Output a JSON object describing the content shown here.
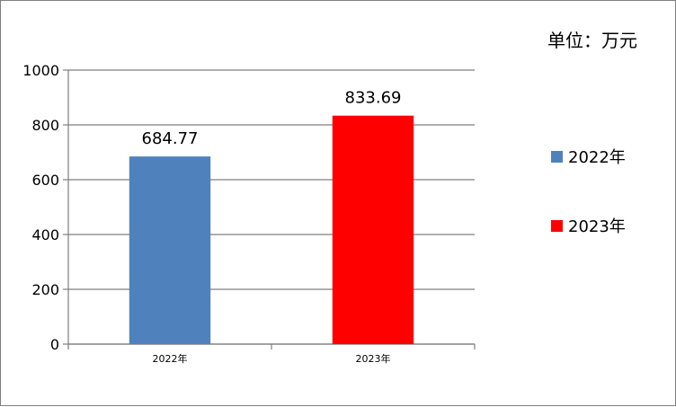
{
  "chart_data": {
    "type": "bar",
    "unit_label": "单位：万元",
    "categories": [
      "2022年",
      "2023年"
    ],
    "values": [
      684.77,
      833.69
    ],
    "data_labels": [
      "684.77",
      "833.69"
    ],
    "colors": [
      "#4f81bd",
      "#ff0000"
    ],
    "legend": [
      {
        "name": "2022年",
        "color": "#4f81bd"
      },
      {
        "name": "2023年",
        "color": "#ff0000"
      }
    ],
    "legend_position": "right",
    "ylim": [
      0,
      1000
    ],
    "yticks": [
      0,
      200,
      400,
      600,
      800,
      1000
    ],
    "grid": true
  }
}
